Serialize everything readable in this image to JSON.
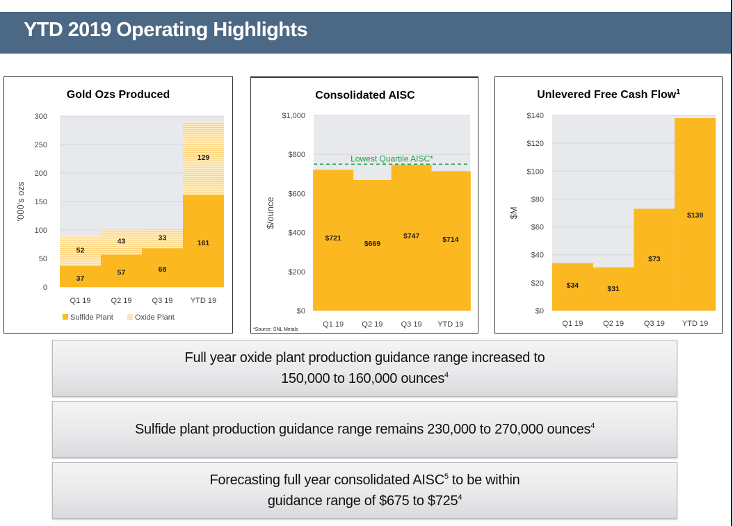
{
  "header": {
    "title": "YTD 2019 Operating Highlights"
  },
  "colors": {
    "header_bg": "#4b6884",
    "bar": "#fbb820",
    "oxide": "#fde3a5",
    "plot_bg": "#e7e9ec",
    "reference_line": "#1f9e4a"
  },
  "chart_data": [
    {
      "id": "gold",
      "type": "bar",
      "stacked": true,
      "title": "Gold Ozs Produced",
      "title_sup": "",
      "xlabel": "",
      "ylabel": "'000's ozs",
      "ylim": [
        0,
        300
      ],
      "yticks": [
        0,
        50,
        100,
        150,
        200,
        250,
        300
      ],
      "ytick_labels": [
        "0",
        "50",
        "100",
        "150",
        "200",
        "250",
        "300"
      ],
      "grid": true,
      "categories": [
        "Q1 19",
        "Q2 19",
        "Q3 19",
        "YTD 19"
      ],
      "series": [
        {
          "name": "Sulfide Plant",
          "values": [
            37,
            57,
            68,
            161
          ],
          "labels": [
            "37",
            "57",
            "68",
            "161"
          ],
          "pattern": "solid"
        },
        {
          "name": "Oxide Plant",
          "values": [
            52,
            43,
            33,
            129
          ],
          "labels": [
            "52",
            "43",
            "33",
            "129"
          ],
          "pattern": "horizontal-stripes"
        }
      ],
      "legend": {
        "position": "bottom",
        "entries": [
          "Sulfide Plant",
          "Oxide Plant"
        ]
      }
    },
    {
      "id": "aisc",
      "type": "bar",
      "title": "Consolidated AISC",
      "title_sup": "",
      "xlabel": "",
      "ylabel": "$/ounce",
      "ylim": [
        0,
        1000
      ],
      "yticks": [
        0,
        200,
        400,
        600,
        800,
        1000
      ],
      "ytick_labels": [
        "$0",
        "$200",
        "$400",
        "$600",
        "$800",
        "$1,000"
      ],
      "grid": true,
      "categories": [
        "Q1 19",
        "Q2 19",
        "Q3 19",
        "YTD 19"
      ],
      "values": [
        721,
        669,
        747,
        714
      ],
      "labels": [
        "$721",
        "$669",
        "$747",
        "$714"
      ],
      "reference_line": {
        "value": 750,
        "label": "Lowest Quartile AISC*",
        "style": "dashed"
      },
      "source_note": "*Source:  SNL Metals"
    },
    {
      "id": "fcf",
      "type": "bar",
      "title": "Unlevered Free Cash Flow",
      "title_sup": "1",
      "xlabel": "",
      "ylabel": "$M",
      "ylim": [
        0,
        140
      ],
      "yticks": [
        0,
        20,
        40,
        60,
        80,
        100,
        120,
        140
      ],
      "ytick_labels": [
        "$0",
        "$20",
        "$40",
        "$60",
        "$80",
        "$100",
        "$120",
        "$140"
      ],
      "grid": true,
      "categories": [
        "Q1 19",
        "Q2 19",
        "Q3 19",
        "YTD 19"
      ],
      "values": [
        34,
        31,
        73,
        138
      ],
      "labels": [
        "$34",
        "$31",
        "$73",
        "$138"
      ]
    }
  ],
  "callouts": [
    {
      "line1": "Full year oxide plant production guidance range increased to",
      "line2": "150,000 to 160,000 ounces",
      "line2_sup": "4"
    },
    {
      "line1": "Sulfide plant production guidance range remains 230,000 to 270,000 ounces",
      "line1_sup": "4"
    },
    {
      "line1_pre": "Forecasting full year consolidated AISC",
      "line1_sup": "5",
      "line1_post": " to be within",
      "line2": "guidance range of $675 to $725",
      "line2_sup": "4"
    }
  ]
}
